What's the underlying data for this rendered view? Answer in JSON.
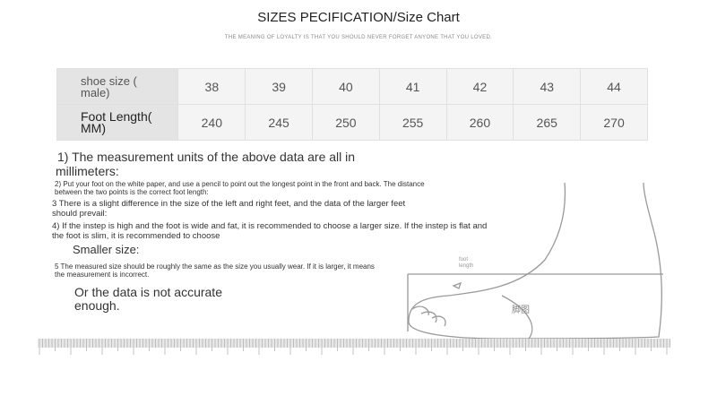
{
  "title": "SIZES PECIFICATION/Size Chart",
  "subtitle": "THE MEANING OF LOYALTY IS THAT YOU SHOULD NEVER FORGET ANYONE THAT YOU LOVED.",
  "table": {
    "rows": [
      {
        "label_line1": "shoe size (",
        "label_line2": "male)",
        "values": [
          "38",
          "39",
          "40",
          "41",
          "42",
          "43",
          "44"
        ]
      },
      {
        "label_line1": "Foot Length(",
        "label_line2": "MM)",
        "values": [
          "240",
          "245",
          "250",
          "255",
          "260",
          "265",
          "270"
        ]
      }
    ]
  },
  "notes": {
    "n1a": "1) The measurement units of the above data are all in",
    "n1b": "millimeters:",
    "n2a": "2) Put your foot on the white paper, and use a pencil to point out the longest point in the front and back. The distance",
    "n2b": "between the two points is the correct foot length:",
    "n3a": "3 There is a slight difference in the size of the left and right feet, and the data of the larger feet",
    "n3b": "should prevail:",
    "n4a": "4) If the instep is high and the foot is wide and fat, it is recommended to choose a larger size. If the instep is flat and",
    "n4b": "the foot is slim, it is recommended to choose",
    "n4c": "Smaller size:",
    "n5a": "5 The measured size should be roughly the same as the size you usually wear. If it is larger, it means",
    "n5b": "the measurement is incorrect.",
    "n5c": "Or the data is not accurate",
    "n5d": "enough."
  },
  "illustration": {
    "foot_label_1": "foot",
    "foot_label_2": "length",
    "outline_label": "脚图"
  }
}
